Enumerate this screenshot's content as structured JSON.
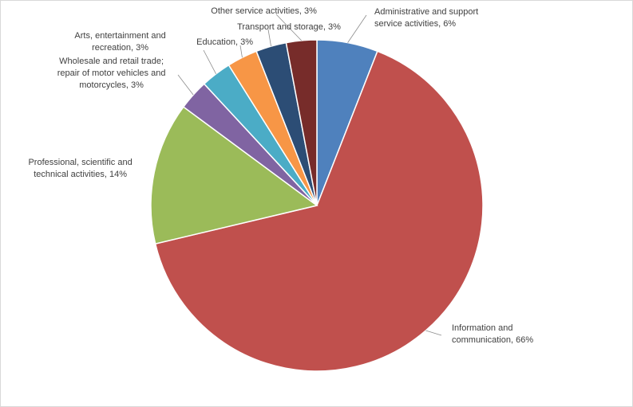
{
  "chart_data": {
    "type": "pie",
    "title": "",
    "legend": "none",
    "series": [
      {
        "values": [
          {
            "category": "Administrative and support service activities",
            "value": 6,
            "label": [
              "Administrative and support",
              "service activities, 6%"
            ],
            "color": "#4F81BD"
          },
          {
            "category": "Information and communication",
            "value": 66,
            "label": [
              "Information and",
              "communication, 66%"
            ],
            "color": "#C0504D"
          },
          {
            "category": "Professional, scientific and technical activities",
            "value": 14,
            "label": [
              "Professional, scientific and",
              "technical activities, 14%"
            ],
            "color": "#9BBB59"
          },
          {
            "category": "Wholesale and retail trade; repair of motor vehicles and motorcycles",
            "value": 3,
            "label": [
              "Wholesale and retail trade;",
              "repair of motor vehicles and",
              "motorcycles, 3%"
            ],
            "color": "#8064A2"
          },
          {
            "category": "Arts, entertainment and recreation",
            "value": 3,
            "label": [
              "Arts, entertainment and",
              "recreation, 3%"
            ],
            "color": "#4BACC6"
          },
          {
            "category": "Education",
            "value": 3,
            "label": [
              "Education, 3%"
            ],
            "color": "#F79646"
          },
          {
            "category": "Transport and storage",
            "value": 3,
            "label": [
              "Transport and storage, 3%"
            ],
            "color": "#2C4D75"
          },
          {
            "category": "Other service activities",
            "value": 3,
            "label": [
              "Other service activities, 3%"
            ],
            "color": "#772C2A"
          }
        ]
      }
    ]
  }
}
